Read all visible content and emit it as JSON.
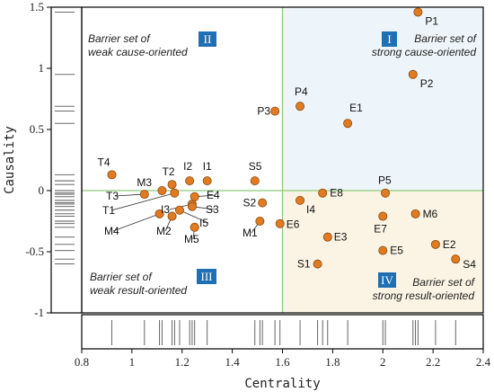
{
  "chart_data": {
    "type": "scatter",
    "xlabel": "Centrality",
    "ylabel": "Causality",
    "xlim": [
      0.8,
      2.4
    ],
    "ylim": [
      -1,
      1.5
    ],
    "x_ticks": [
      "0.8",
      "1",
      "1.2",
      "1.4",
      "1.6",
      "1.8",
      "2",
      "2.2",
      "2.4"
    ],
    "y_ticks": [
      "1.5",
      "1",
      "0.5",
      "0",
      "-0.5",
      "-1"
    ],
    "divider": {
      "x": 1.6,
      "y": 0
    },
    "quadrants": [
      {
        "numeral": "II",
        "line1": "Barrier set of",
        "line2": "weak cause-oriented"
      },
      {
        "numeral": "I",
        "line1": "Barrier set of",
        "line2": "strong cause-oriented"
      },
      {
        "numeral": "III",
        "line1": "Barrier set of",
        "line2": "weak result-oriented"
      },
      {
        "numeral": "IV",
        "line1": "Barrier set of",
        "line2": "strong result-oriented"
      }
    ],
    "points": [
      {
        "label": "P1",
        "x": 2.14,
        "y": 1.46
      },
      {
        "label": "P2",
        "x": 2.12,
        "y": 0.95
      },
      {
        "label": "P3",
        "x": 1.57,
        "y": 0.65
      },
      {
        "label": "P4",
        "x": 1.67,
        "y": 0.69
      },
      {
        "label": "E1",
        "x": 1.86,
        "y": 0.55
      },
      {
        "label": "P5",
        "x": 2.01,
        "y": -0.02
      },
      {
        "label": "E8",
        "x": 1.76,
        "y": -0.02
      },
      {
        "label": "I4",
        "x": 1.67,
        "y": -0.08
      },
      {
        "label": "S2",
        "x": 1.52,
        "y": -0.1
      },
      {
        "label": "E6",
        "x": 1.59,
        "y": -0.27
      },
      {
        "label": "M6",
        "x": 2.13,
        "y": -0.19
      },
      {
        "label": "E7",
        "x": 2.0,
        "y": -0.21
      },
      {
        "label": "E3",
        "x": 1.78,
        "y": -0.38
      },
      {
        "label": "E2",
        "x": 2.21,
        "y": -0.44
      },
      {
        "label": "E5",
        "x": 2.0,
        "y": -0.49
      },
      {
        "label": "S4",
        "x": 2.29,
        "y": -0.56
      },
      {
        "label": "S1",
        "x": 1.74,
        "y": -0.6
      },
      {
        "label": "S5",
        "x": 1.49,
        "y": 0.08
      },
      {
        "label": "T4",
        "x": 0.92,
        "y": 0.13
      },
      {
        "label": "I1",
        "x": 1.3,
        "y": 0.08
      },
      {
        "label": "I2",
        "x": 1.23,
        "y": 0.08
      },
      {
        "label": "T2",
        "x": 1.16,
        "y": 0.05
      },
      {
        "label": "M3",
        "x": 1.12,
        "y": 0.0
      },
      {
        "label": "T3",
        "x": 1.05,
        "y": -0.03
      },
      {
        "label": "T1",
        "x": 1.17,
        "y": -0.02
      },
      {
        "label": "I3",
        "x": 1.24,
        "y": -0.11
      },
      {
        "label": "E4",
        "x": 1.25,
        "y": -0.05
      },
      {
        "label": "S3",
        "x": 1.24,
        "y": -0.13
      },
      {
        "label": "I5",
        "x": 1.19,
        "y": -0.16
      },
      {
        "label": "M4",
        "x": 1.11,
        "y": -0.19
      },
      {
        "label": "M2",
        "x": 1.16,
        "y": -0.21
      },
      {
        "label": "M5",
        "x": 1.25,
        "y": -0.3
      },
      {
        "label": "M1",
        "x": 1.51,
        "y": -0.25
      }
    ],
    "marginal_x_ticks": [
      0.92,
      1.05,
      1.11,
      1.12,
      1.16,
      1.17,
      1.19,
      1.23,
      1.24,
      1.25,
      1.3,
      1.49,
      1.51,
      1.52,
      1.57,
      1.59,
      1.67,
      1.74,
      1.76,
      1.78,
      1.86,
      2.0,
      2.01,
      2.12,
      2.13,
      2.14,
      2.21,
      2.29
    ],
    "marginal_y_ticks": [
      1.46,
      0.95,
      0.69,
      0.65,
      0.55,
      0.13,
      0.08,
      0.05,
      0.0,
      -0.02,
      -0.03,
      -0.05,
      -0.08,
      -0.1,
      -0.11,
      -0.13,
      -0.16,
      -0.19,
      -0.21,
      -0.25,
      -0.27,
      -0.3,
      -0.38,
      -0.44,
      -0.49,
      -0.56,
      -0.6
    ],
    "colors": {
      "point_fill": "#e07b22",
      "point_stroke": "#8a4b10",
      "divider": "#8cc97a",
      "quadrant1_fill": "#eef5fa",
      "quadrant4_fill": "#fbf4e4",
      "badge": "#1f6fb5",
      "callout": "#333333"
    }
  }
}
